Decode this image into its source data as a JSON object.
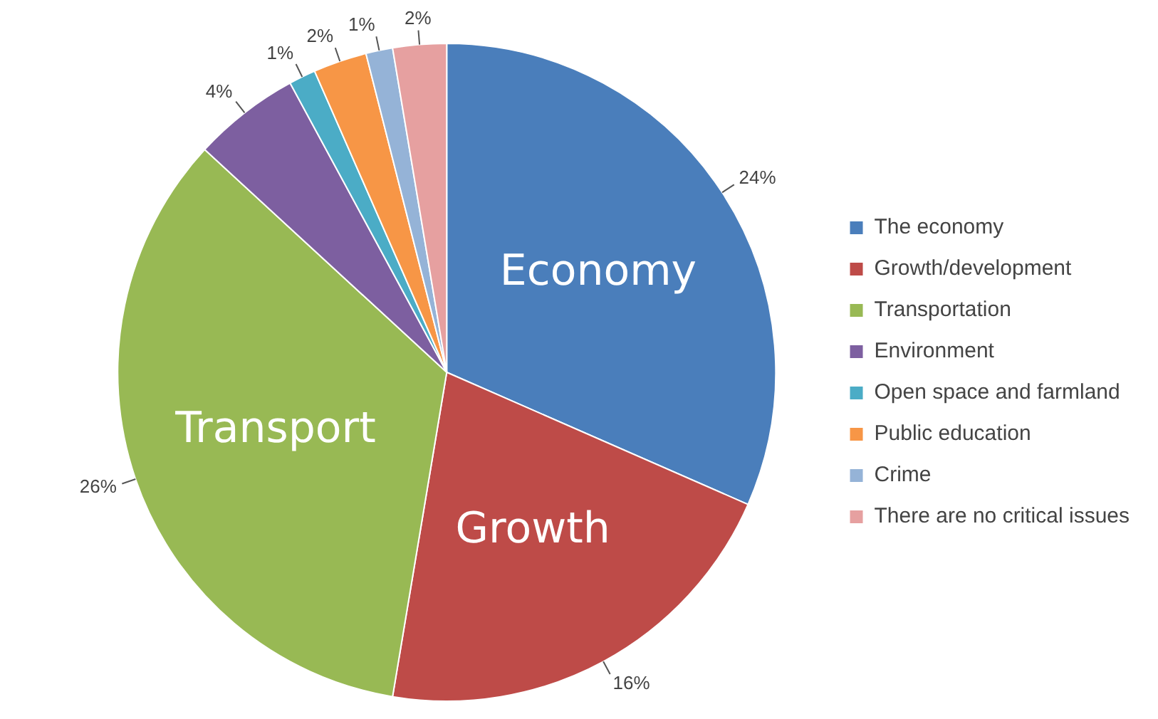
{
  "chart_data": {
    "type": "pie",
    "categories": [
      "The economy",
      "Growth/development",
      "Transportation",
      "Environment",
      "Open space and farmland",
      "Public education",
      "Crime",
      "There are no critical issues"
    ],
    "values": [
      24,
      16,
      26,
      4,
      1,
      2,
      1,
      2
    ],
    "value_labels": [
      "24%",
      "16%",
      "26%",
      "4%",
      "1%",
      "2%",
      "1%",
      "2%"
    ],
    "colors": [
      "#4a7ebb",
      "#be4b48",
      "#98b954",
      "#7d5fa0",
      "#4bacc6",
      "#f79646",
      "#95b3d7",
      "#e6a0a0"
    ],
    "annotations": [
      {
        "text": "Economy",
        "x": "The economy"
      },
      {
        "text": "Growth",
        "x": "Growth/development"
      },
      {
        "text": "Transport",
        "x": "Transportation"
      }
    ],
    "legend": "right"
  }
}
